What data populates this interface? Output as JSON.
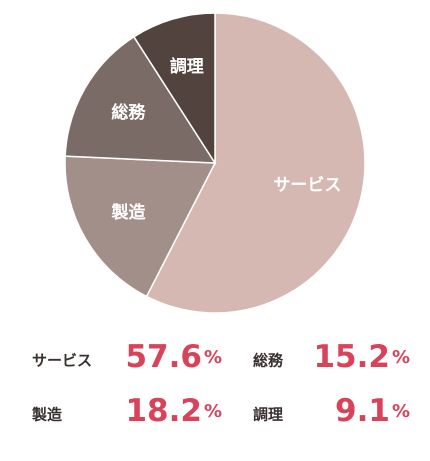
{
  "chart_data": {
    "type": "pie",
    "categories": [
      "サービス",
      "製造",
      "総務",
      "調理"
    ],
    "values": [
      57.6,
      18.2,
      15.2,
      9.1
    ],
    "unit": "%",
    "colors": [
      "#d5b8b2",
      "#a38f89",
      "#7a6b66",
      "#52433f"
    ]
  }
}
